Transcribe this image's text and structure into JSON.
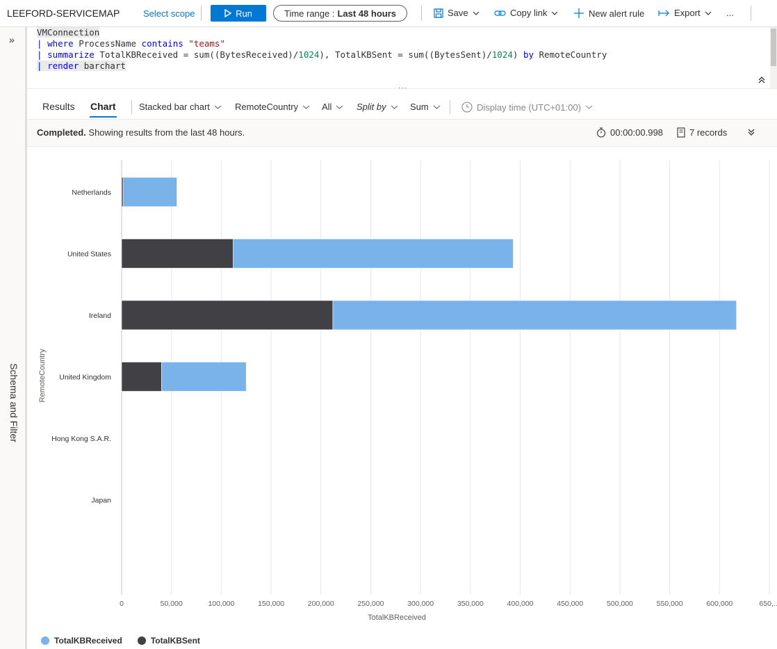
{
  "topbar": {
    "workspace": "LEEFORD-SERVICEMAP",
    "select_scope": "Select scope",
    "run_label": "Run",
    "time_range_label": "Time range :",
    "time_range_value": "Last 48 hours",
    "save_label": "Save",
    "copy_link_label": "Copy link",
    "new_alert_label": "New alert rule",
    "export_label": "Export",
    "more_label": "..."
  },
  "rail": {
    "label": "Schema and Filter"
  },
  "query": {
    "line1": "VMConnection",
    "line2_kw": "where",
    "line2_a": " ProcessName ",
    "line2_op": "contains",
    "line2_str": "\"teams\"",
    "line3_kw": "summarize",
    "line3_a": " TotalKBReceived = sum((BytesReceived)/",
    "line3_n1": "1024",
    "line3_b": "), TotalKBSent = sum((BytesSent)/",
    "line3_n2": "1024",
    "line3_c": ") ",
    "line3_by": "by",
    "line3_d": " RemoteCountry",
    "line4_kw": "render",
    "line4_a": " barchart"
  },
  "tabs": {
    "results": "Results",
    "chart": "Chart"
  },
  "options": {
    "chart_type": "Stacked bar chart",
    "x_column": "RemoteCountry",
    "y_column": "All",
    "split_by": "Split by",
    "aggregation": "Sum",
    "display_time": "Display time (UTC+01:00)"
  },
  "status": {
    "completed": "Completed.",
    "message": " Showing results from the last 48 hours.",
    "duration": "00:00:00.998",
    "records": "7 records"
  },
  "colors": {
    "received": "#7ab3e9",
    "sent": "#404045",
    "accent": "#0078d4"
  },
  "chart_data": {
    "type": "bar",
    "orientation": "horizontal",
    "stacked": true,
    "categories": [
      "Netherlands",
      "United States",
      "Ireland",
      "United Kingdom",
      "Hong Kong S.A.R.",
      "Japan"
    ],
    "series": [
      {
        "name": "TotalKBSent",
        "values": [
          1500,
          112000,
          212000,
          40000,
          0,
          0
        ]
      },
      {
        "name": "TotalKBReceived",
        "values": [
          54000,
          281000,
          405000,
          85000,
          0,
          0
        ]
      }
    ],
    "x_ticks": [
      "0",
      "50,000",
      "100,000",
      "150,000",
      "200,000",
      "250,000",
      "300,000",
      "350,000",
      "400,000",
      "450,000",
      "500,000",
      "550,000",
      "600,000",
      "650,..."
    ],
    "xlim": [
      0,
      650000
    ],
    "xlabel": "TotalKBReceived",
    "ylabel": "RemoteCountry",
    "grid": true,
    "legend": [
      "TotalKBReceived",
      "TotalKBSent"
    ],
    "legend_position": "bottom-left"
  }
}
